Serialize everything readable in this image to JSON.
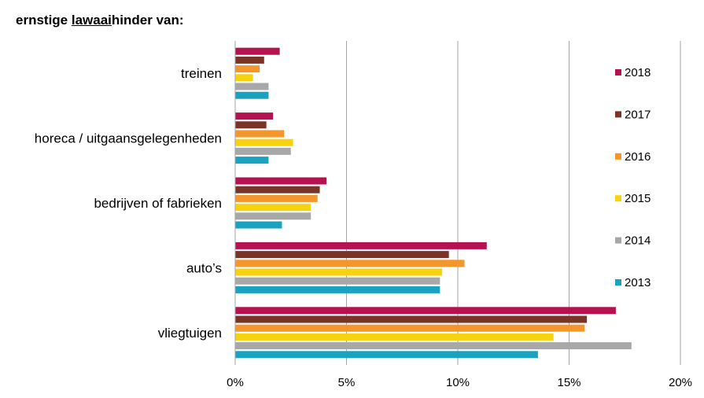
{
  "title": {
    "prefix": "ernstige ",
    "underlined": "lawaai",
    "suffix": "hinder van:"
  },
  "chart_data": {
    "type": "bar",
    "orientation": "horizontal",
    "categories": [
      "treinen",
      "horeca / uitgaansgelegenheden",
      "bedrijven of fabrieken",
      "auto’s",
      "vliegtuigen"
    ],
    "series": [
      {
        "name": "2018",
        "color": "#b5124f",
        "values": [
          2.0,
          1.7,
          4.1,
          11.3,
          17.1
        ]
      },
      {
        "name": "2017",
        "color": "#7a3426",
        "values": [
          1.3,
          1.4,
          3.8,
          9.6,
          15.8
        ]
      },
      {
        "name": "2016",
        "color": "#f5962a",
        "values": [
          1.1,
          2.2,
          3.7,
          10.3,
          15.7
        ]
      },
      {
        "name": "2015",
        "color": "#f6d30e",
        "values": [
          0.8,
          2.6,
          3.4,
          9.3,
          14.3
        ]
      },
      {
        "name": "2014",
        "color": "#a8a8a8",
        "values": [
          1.5,
          2.5,
          3.4,
          9.2,
          17.8
        ]
      },
      {
        "name": "2013",
        "color": "#1aa3c0",
        "values": [
          1.5,
          1.5,
          2.1,
          9.2,
          13.6
        ]
      }
    ],
    "xlim": [
      0,
      20
    ],
    "xticks": [
      0,
      5,
      10,
      15,
      20
    ],
    "xtick_labels": [
      "0%",
      "5%",
      "10%",
      "15%",
      "20%"
    ],
    "grid": "vertical",
    "legend_position": "right",
    "legend_order": [
      "2018",
      "2017",
      "2016",
      "2015",
      "2014",
      "2013"
    ]
  }
}
